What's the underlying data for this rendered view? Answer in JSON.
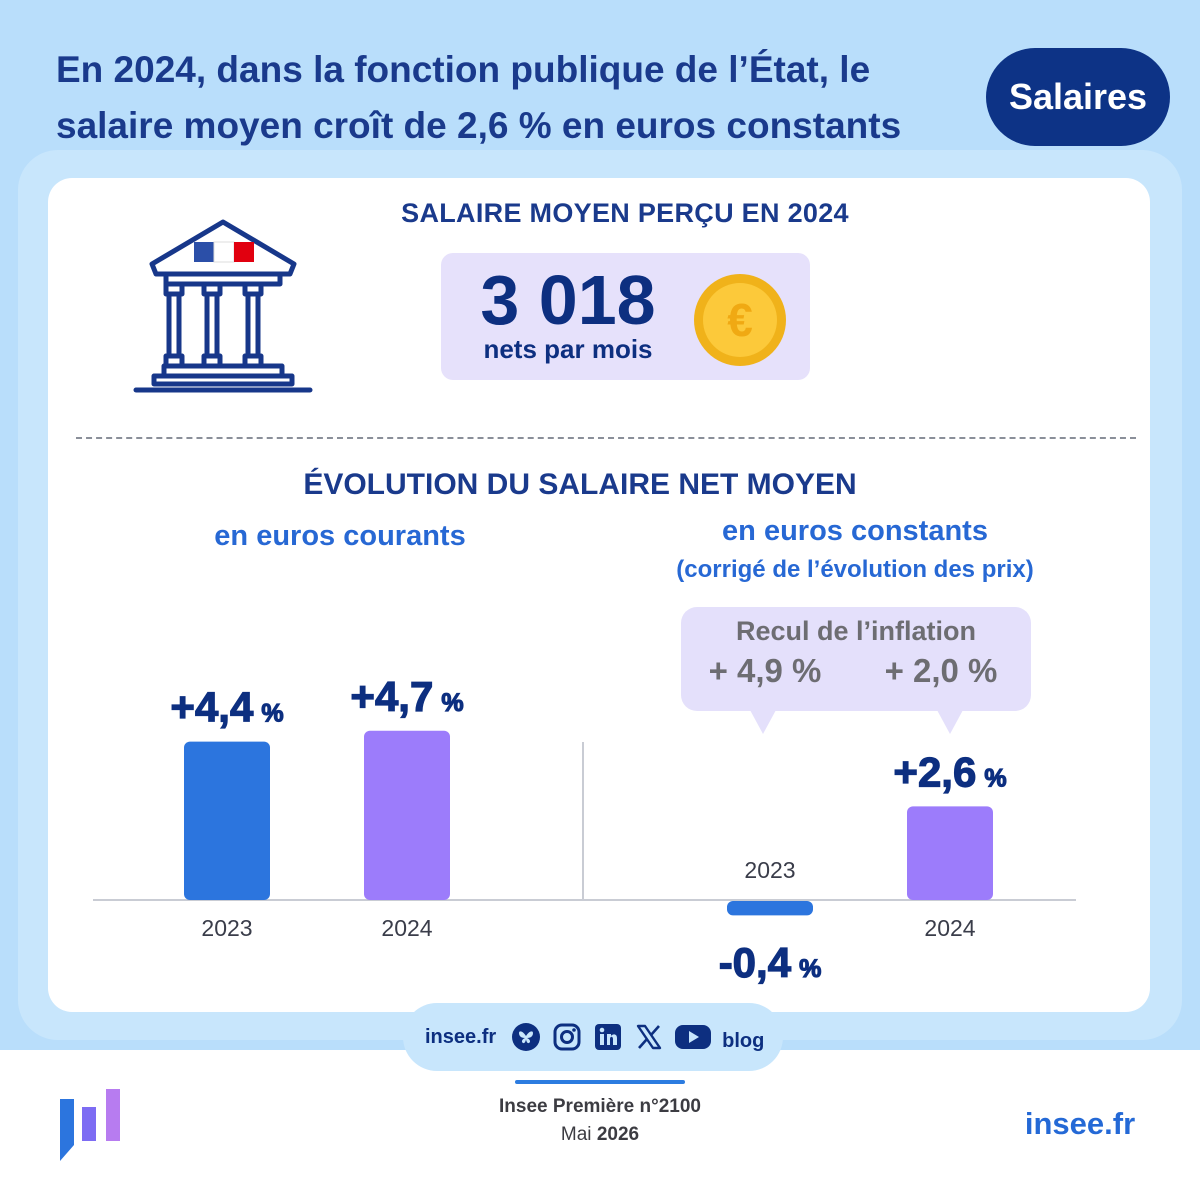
{
  "headline": {
    "line1": "En 2024, dans la fonction publique de l’État, le",
    "line2": "salaire moyen croît de 2,6 % en euros constants"
  },
  "tag": "Salaires",
  "salary": {
    "title": "SALAIRE MOYEN PERÇU EN 2024",
    "value": "3 018",
    "unit": "nets par mois",
    "coin_symbol": "€"
  },
  "evolution": {
    "title": "ÉVOLUTION DU SALAIRE NET MOYEN",
    "left_subtitle": "en euros courants",
    "right_subtitle": "en euros constants",
    "right_subtitle_note": "(corrigé de l’évolution des prix)",
    "bubble": {
      "title": "Recul de l’inflation",
      "values": [
        "+ 4,9 %",
        "+ 2,0 %"
      ]
    }
  },
  "chart_data": [
    {
      "type": "bar",
      "title": "en euros courants",
      "categories": [
        "2023",
        "2024"
      ],
      "values": [
        4.4,
        4.7
      ],
      "value_labels": [
        {
          "main": "+4,4",
          "unit": "%"
        },
        {
          "main": "+4,7",
          "unit": "%"
        }
      ],
      "colors": [
        "#2c75de",
        "#9c7cfb"
      ]
    },
    {
      "type": "bar",
      "title": "en euros constants",
      "categories": [
        "2023",
        "2024"
      ],
      "values": [
        -0.4,
        2.6
      ],
      "value_labels": [
        {
          "main": "-0,4",
          "unit": "%"
        },
        {
          "main": "+2,6",
          "unit": "%"
        }
      ],
      "colors": [
        "#2c75de",
        "#9c7cfb"
      ]
    }
  ],
  "social": {
    "site": "insee.fr",
    "icons": [
      "bluesky-icon",
      "instagram-icon",
      "linkedin-icon",
      "x-icon",
      "youtube-icon",
      "blog-icon"
    ],
    "blog": "blog"
  },
  "footer": {
    "publication": "Insee Première n°2100",
    "month": "Mai",
    "year": "2026",
    "site": "insee.fr"
  },
  "colors": {
    "navy": "#0d3386",
    "blue": "#2c75de",
    "purple": "#9c7cfb",
    "sky": "#b9defb"
  }
}
